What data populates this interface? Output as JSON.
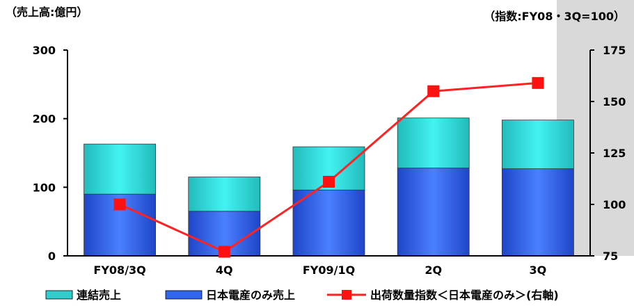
{
  "chart_data": {
    "type": "bar",
    "left_axis_label": "（売上高:億円）",
    "right_axis_label": "（指数:FY08・3Q=100）",
    "categories": [
      "FY08/3Q",
      "4Q",
      "FY09/1Q",
      "2Q",
      "3Q"
    ],
    "ylim_left": [
      0,
      300
    ],
    "yticks_left": [
      "0",
      "100",
      "200",
      "300"
    ],
    "ylim_right": [
      75,
      175
    ],
    "yticks_right": [
      "75",
      "100",
      "125",
      "150",
      "175"
    ],
    "stack_total": [
      163,
      115,
      159,
      201,
      198
    ],
    "series": [
      {
        "name": "連結売上",
        "axis": "left",
        "kind": "bar-stacked-top",
        "values": [
          73,
          50,
          63,
          73,
          71
        ],
        "color": "#33CCCC"
      },
      {
        "name": "日本電産のみ売上",
        "axis": "left",
        "kind": "bar-stacked-base",
        "values": [
          90,
          65,
          96,
          128,
          127
        ],
        "color": "#3366EE"
      },
      {
        "name": "出荷数量指数＜日本電産のみ＞(右軸)",
        "axis": "right",
        "kind": "line",
        "values": [
          100,
          77,
          111,
          155,
          159
        ],
        "color": "#FF2222"
      }
    ],
    "legend_position": "bottom",
    "grid": false
  }
}
